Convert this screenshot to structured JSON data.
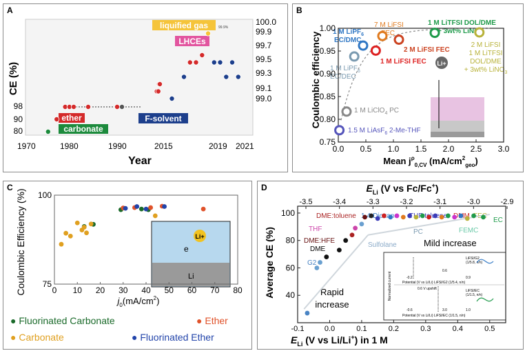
{
  "panels": [
    {
      "label": "A",
      "chart_data": {
        "type": "scatter",
        "title": "",
        "xlabel": "Year",
        "ylabel": "CE (%)",
        "x_ticks": [
          "1970",
          "1980",
          "1990",
          "2015",
          "2019",
          "2021"
        ],
        "y_ticks_left": [
          "80",
          "90",
          "98"
        ],
        "y_ticks_right": [
          "99.0",
          "99.1",
          "99.3",
          "99.5",
          "99.7",
          "99.9",
          "100.0"
        ],
        "labels": {
          "ether": "ether",
          "carbonate": "carbonate",
          "fsolvent": "F-solvent",
          "liquified": "liquified gas",
          "lhce": "LHCEs",
          "pct": "99.9%"
        },
        "points": [
          {
            "year": 1974,
            "ce": 80,
            "cls": "carbonate"
          },
          {
            "year": 1976,
            "ce": 90,
            "cls": "ether"
          },
          {
            "year": 1978,
            "ce": 98,
            "cls": "ether"
          },
          {
            "year": 1979,
            "ce": 98,
            "cls": "ether"
          },
          {
            "year": 1980,
            "ce": 98,
            "cls": "ether"
          },
          {
            "year": 1983,
            "ce": 98,
            "cls": "ether"
          },
          {
            "year": 1989,
            "ce": 98,
            "cls": "ether"
          },
          {
            "year": 1990,
            "ce": 98,
            "cls": "other"
          },
          {
            "year": 2013,
            "ce": 99.1,
            "cls": "ether"
          },
          {
            "year": 2014,
            "ce": 99.1,
            "cls": "ether"
          },
          {
            "year": 2014.5,
            "ce": 99.2,
            "cls": "ether"
          },
          {
            "year": 2015,
            "ce": 99.2,
            "cls": "ether"
          },
          {
            "year": 2016,
            "ce": 99.0,
            "cls": "fsolvent"
          },
          {
            "year": 2017,
            "ce": 99.3,
            "cls": "fsolvent"
          },
          {
            "year": 2017.5,
            "ce": 99.5,
            "cls": "ether"
          },
          {
            "year": 2018,
            "ce": 99.5,
            "cls": "ether"
          },
          {
            "year": 2018.5,
            "ce": 99.6,
            "cls": "ether"
          },
          {
            "year": 2019,
            "ce": 99.9,
            "cls": "liquified"
          },
          {
            "year": 2019.5,
            "ce": 99.5,
            "cls": "fsolvent"
          },
          {
            "year": 2020,
            "ce": 99.5,
            "cls": "fsolvent"
          },
          {
            "year": 2020.5,
            "ce": 99.3,
            "cls": "fsolvent"
          },
          {
            "year": 2021,
            "ce": 99.5,
            "cls": "fsolvent"
          },
          {
            "year": 2021.5,
            "ce": 99.3,
            "cls": "fsolvent"
          }
        ]
      }
    },
    {
      "label": "B",
      "chart_data": {
        "type": "scatter",
        "title": "",
        "xlabel": "Mean j",
        "xlabel_sup": "ρ",
        "xlabel_sub": "0,CV",
        "xlabel_units_a": " (mA/cm",
        "xlabel_units_sup": "2",
        "xlabel_units_sub": "geo",
        "xlabel_units_b": ")",
        "ylabel": "Coulombic efficiency",
        "xlim": [
          0,
          3.0
        ],
        "ylim": [
          0.75,
          1.0
        ],
        "x_ticks": [
          "0.0",
          "0.5",
          "1.0",
          "1.5",
          "2.0",
          "2.5",
          "3.0"
        ],
        "y_ticks": [
          "0.75",
          "0.80",
          "0.85",
          "0.90",
          "0.95",
          "1.00"
        ],
        "li_label": "Li+",
        "points": [
          {
            "name": "1.5 M LiAsF6 2-Me-THF",
            "x": 0.02,
            "y": 0.776,
            "color": "#5555bb"
          },
          {
            "name": "1 M LiClO4 PC",
            "x": 0.15,
            "y": 0.817,
            "color": "#888888"
          },
          {
            "name": "1 M LiPF6 EC/DEC",
            "x": 0.29,
            "y": 0.938,
            "color": "#7a9ab0"
          },
          {
            "name": "1 M LiPF6 EC/DMC",
            "x": 0.45,
            "y": 0.962,
            "color": "#2f77c4"
          },
          {
            "name": "1 M LiFSI FEC",
            "x": 0.68,
            "y": 0.951,
            "color": "#dd2222"
          },
          {
            "name": "7 M LiFSI FEC",
            "x": 0.8,
            "y": 0.983,
            "color": "#e07a1e"
          },
          {
            "name": "2 M LiFSI FEC",
            "x": 1.1,
            "y": 0.975,
            "color": "#cc4422"
          },
          {
            "name": "1 M LiTFSI DOL/DME + 3wt% LiNO3",
            "x": 1.75,
            "y": 0.99,
            "color": "#1e9a4a"
          },
          {
            "name": "2 M LiFSI 1 M LiTFSI DOL/DME + 3wt% LiNO3",
            "x": 2.56,
            "y": 0.991,
            "color": "#b8b23a"
          }
        ],
        "annotations": [
          {
            "text": "1 M LiPF",
            "sub": "6",
            "line2": "EC/DMC",
            "color": "#2f77c4"
          },
          {
            "text": "7 M LiFSI",
            "line2": "FEC",
            "color": "#e07a1e"
          },
          {
            "text": "1 M LiTFSI DOL/DME",
            "line2": "+ 3wt% LiNO",
            "sub2": "3",
            "color": "#1e9a4a"
          },
          {
            "text": "2 M LiFSI FEC",
            "color": "#cc4422"
          },
          {
            "text": "1 M LiFSI FEC",
            "color": "#dd2222"
          },
          {
            "text": "1 M LiPF",
            "sub": "6",
            "line2": "EC/DEC",
            "color": "#7a9ab0"
          },
          {
            "text": "2 M LiFSI",
            "line2": "1 M LiTFSI",
            "line3": "DOL/DME",
            "line4": "+ 3wt% LiNO",
            "sub4": "3",
            "color": "#b8b23a"
          },
          {
            "text": "1 M LiClO",
            "sub": "4",
            "tail": " PC",
            "color": "#888888"
          },
          {
            "text": "1.5 M LiAsF",
            "sub": "6",
            "tail": " 2-Me-THF",
            "color": "#5555bb"
          }
        ]
      }
    },
    {
      "label": "C",
      "chart_data": {
        "type": "scatter",
        "title": "",
        "xlabel": "j",
        "xlabel_sub": "0",
        "xlabel_units": "(mA/cm",
        "xlabel_units_sup": "2",
        "xlabel_units_b": ")",
        "ylabel": "Coulombic Efficiency (%)",
        "xlim": [
          0,
          80
        ],
        "ylim": [
          75,
          100
        ],
        "x_ticks": [
          "0",
          "10",
          "20",
          "30",
          "40",
          "50",
          "60",
          "70",
          "80"
        ],
        "y_ticks": [
          "75",
          "100"
        ],
        "inset_label_e": "e",
        "inset_label_li": "Li+",
        "inset_label_bottom": "Li",
        "series": [
          {
            "name": "Fluorinated Carbonate",
            "color": "#1a6a2a",
            "points": [
              [
                13,
                91.2
              ],
              [
                17,
                91.8
              ],
              [
                29,
                95.9
              ],
              [
                38,
                96.1
              ],
              [
                41,
                95.9
              ]
            ]
          },
          {
            "name": "Ether",
            "color": "#e0522a",
            "points": [
              [
                30,
                96.4
              ],
              [
                35,
                96.5
              ],
              [
                42,
                96.5
              ],
              [
                47,
                96.9
              ],
              [
                65,
                96.1
              ]
            ]
          },
          {
            "name": "Carbonate",
            "color": "#e0a020",
            "points": [
              [
                3,
                86.2
              ],
              [
                5,
                89.3
              ],
              [
                7,
                88.5
              ],
              [
                10,
                92.2
              ],
              [
                12,
                90.2
              ],
              [
                13,
                91.0
              ],
              [
                14,
                89.4
              ],
              [
                16,
                91.9
              ],
              [
                44,
                94.2
              ]
            ]
          },
          {
            "name": "Fluorinated Ether",
            "color": "#2244aa",
            "points": [
              [
                31,
                96.3
              ],
              [
                36,
                96.8
              ],
              [
                40,
                96.1
              ],
              [
                48,
                96.8
              ]
            ]
          }
        ]
      }
    },
    {
      "label": "D",
      "chart_data": {
        "type": "scatter",
        "title": "",
        "xlabel_bottom": "E",
        "xlabel_bottom_sub": "Li",
        "xlabel_bottom_b": " (V vs Li/Li",
        "xlabel_bottom_sup": "+",
        "xlabel_bottom_c": ") in 1 M",
        "xlabel_top": "E",
        "xlabel_top_sub": "Li",
        "xlabel_top_b": " (V vs Fc/Fc",
        "xlabel_top_sup": "+",
        "xlabel_top_c": ")",
        "ylabel": "Average CE (%)",
        "xlim": [
          -0.1,
          0.55
        ],
        "ylim": [
          20,
          105
        ],
        "top_xlim": [
          -3.5,
          -2.9
        ],
        "x_ticks": [
          "-0.1",
          "0.0",
          "0.1",
          "0.2",
          "0.3",
          "0.4",
          "0.5"
        ],
        "top_ticks": [
          "-3.5",
          "-3.4",
          "-3.3",
          "-3.2",
          "-3.1",
          "-3.0",
          "-2.9"
        ],
        "y_ticks": [
          "40",
          "60",
          "80",
          "100"
        ],
        "labels": {
          "dme_toluene": "DME:toluene",
          "dioxane": "1,4-Dioxane",
          "thf_toluene": "THF:toluene",
          "dmm": "DMM",
          "fec": "FEC",
          "ec": "EC",
          "thf": "THF",
          "dme_hfe": "DME:HFE",
          "dme": "DME",
          "g2": "G2",
          "sulfolane": "Sulfolane",
          "pc": "PC",
          "femc": "FEMC",
          "mild": "Mild increase",
          "rapid": "Rapid",
          "increase": "increase",
          "inset_ylabel": "Normalized current",
          "inset_top": "LiFSI/G2",
          "inset_top2": "(1/5.8, n/n)",
          "inset_bottom": "LiFSI/EC",
          "inset_bottom2": "(1/1.5, n/n)",
          "inset_note": "0.6 V upshift",
          "inset_x1": "Potential (V vs Li/Li",
          "inset_x1b": ") LiFSI/G2 (1/5.4, n/n)",
          "inset_x2": "Potential (V vs Li/Li",
          "inset_x2b": ") LiFSI/EC (1/1.5, n/n)",
          "t1": "-0.2",
          "t2": "0.6",
          "t3": "0.9",
          "t4": "-0.6",
          "t5": "3.0",
          "t6": "1.0"
        },
        "points": [
          {
            "x": -0.07,
            "y": 27,
            "color": "#4a84c4"
          },
          {
            "x": -0.04,
            "y": 60,
            "color": "#6aa0d0"
          },
          {
            "x": -0.03,
            "y": 64,
            "color": "#6aa0d0"
          },
          {
            "x": -0.01,
            "y": 68,
            "color": "#111111"
          },
          {
            "x": 0.03,
            "y": 73,
            "color": "#111111"
          },
          {
            "x": 0.05,
            "y": 80,
            "color": "#111111"
          },
          {
            "x": 0.07,
            "y": 84,
            "color": "#aa2222"
          },
          {
            "x": 0.08,
            "y": 89,
            "color": "#cc44aa"
          },
          {
            "x": 0.1,
            "y": 92,
            "color": "#6aa0d0"
          },
          {
            "x": 0.11,
            "y": 97,
            "color": "#661111"
          },
          {
            "x": 0.13,
            "y": 98,
            "color": "#222222"
          },
          {
            "x": 0.15,
            "y": 96,
            "color": "#3b3bb8"
          },
          {
            "x": 0.17,
            "y": 98,
            "color": "#cc2222"
          },
          {
            "x": 0.19,
            "y": 97,
            "color": "#2f77c4"
          },
          {
            "x": 0.21,
            "y": 98,
            "color": "#cc33cc"
          },
          {
            "x": 0.23,
            "y": 97,
            "color": "#e07a1e"
          },
          {
            "x": 0.25,
            "y": 98,
            "color": "#3b3bb8"
          },
          {
            "x": 0.27,
            "y": 97,
            "color": "#b8b23a"
          },
          {
            "x": 0.29,
            "y": 98,
            "color": "#1e9a4a"
          },
          {
            "x": 0.31,
            "y": 97,
            "color": "#cc2222"
          },
          {
            "x": 0.33,
            "y": 98,
            "color": "#3b3bb8"
          },
          {
            "x": 0.35,
            "y": 97,
            "color": "#e07a1e"
          },
          {
            "x": 0.37,
            "y": 98,
            "color": "#1e9a4a"
          },
          {
            "x": 0.39,
            "y": 97,
            "color": "#cc33cc"
          },
          {
            "x": 0.41,
            "y": 98,
            "color": "#2f77c4"
          },
          {
            "x": 0.43,
            "y": 96,
            "color": "#b8b23a"
          },
          {
            "x": 0.45,
            "y": 98,
            "color": "#1e9a4a"
          },
          {
            "x": 0.48,
            "y": 97,
            "color": "#1e9a4a"
          }
        ]
      }
    }
  ],
  "legend_c": [
    {
      "label": "Fluorinated Carbonate",
      "color": "#1a6a2a"
    },
    {
      "label": "Ether",
      "color": "#e0522a"
    },
    {
      "label": "Carbonate",
      "color": "#e0a020"
    },
    {
      "label": "Fluorinated Ether",
      "color": "#2244aa"
    }
  ]
}
